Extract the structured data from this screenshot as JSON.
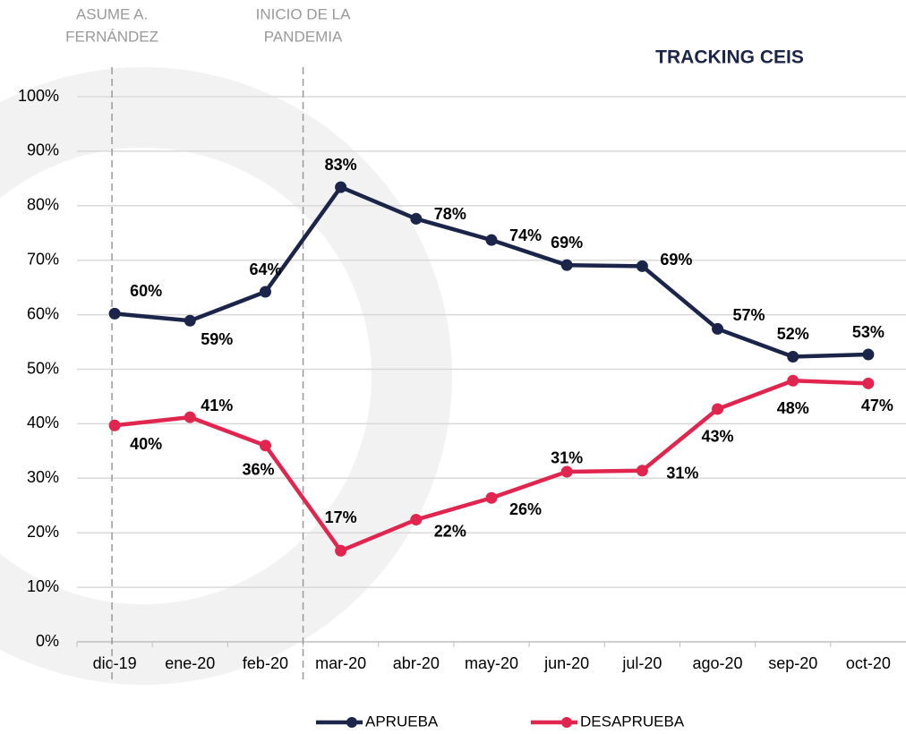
{
  "chart_data": {
    "type": "line",
    "title": "TRACKING CEIS",
    "categories": [
      "dic-19",
      "ene-20",
      "feb-20",
      "mar-20",
      "abr-20",
      "may-20",
      "jun-20",
      "jul-20",
      "ago-20",
      "sep-20",
      "oct-20"
    ],
    "series": [
      {
        "name": "APRUEBA",
        "color": "#1b2549",
        "values": [
          60.2,
          58.9,
          64.2,
          83.4,
          77.6,
          73.7,
          69.1,
          68.9,
          57.4,
          52.3,
          52.7
        ],
        "value_labels": [
          "60%",
          "59%",
          "64%",
          "83%",
          "78%",
          "74%",
          "69%",
          "69%",
          "57%",
          "52%",
          "53%"
        ]
      },
      {
        "name": "DESAPRUEBA",
        "color": "#e0264e",
        "values": [
          39.7,
          41.2,
          36.0,
          16.7,
          22.4,
          26.4,
          31.2,
          31.4,
          42.7,
          47.9,
          47.4
        ],
        "value_labels": [
          "40%",
          "41%",
          "36%",
          "17%",
          "22%",
          "26%",
          "31%",
          "31%",
          "43%",
          "48%",
          "47%"
        ]
      }
    ],
    "ylim": [
      0,
      100
    ],
    "yticks": [
      {
        "value": 0,
        "label": "0%"
      },
      {
        "value": 10,
        "label": "10%"
      },
      {
        "value": 20,
        "label": "20%"
      },
      {
        "value": 30,
        "label": "30%"
      },
      {
        "value": 40,
        "label": "40%"
      },
      {
        "value": 50,
        "label": "50%"
      },
      {
        "value": 60,
        "label": "60%"
      },
      {
        "value": 70,
        "label": "70%"
      },
      {
        "value": 80,
        "label": "80%"
      },
      {
        "value": 90,
        "label": "90%"
      },
      {
        "value": 100,
        "label": "100%"
      }
    ],
    "grid": true,
    "legend": "bottom",
    "annotations": [
      {
        "lines": [
          "ASUME A.",
          "FERNÁNDEZ"
        ]
      },
      {
        "lines": [
          "INICIO DE LA",
          "PANDEMIA"
        ]
      }
    ]
  }
}
